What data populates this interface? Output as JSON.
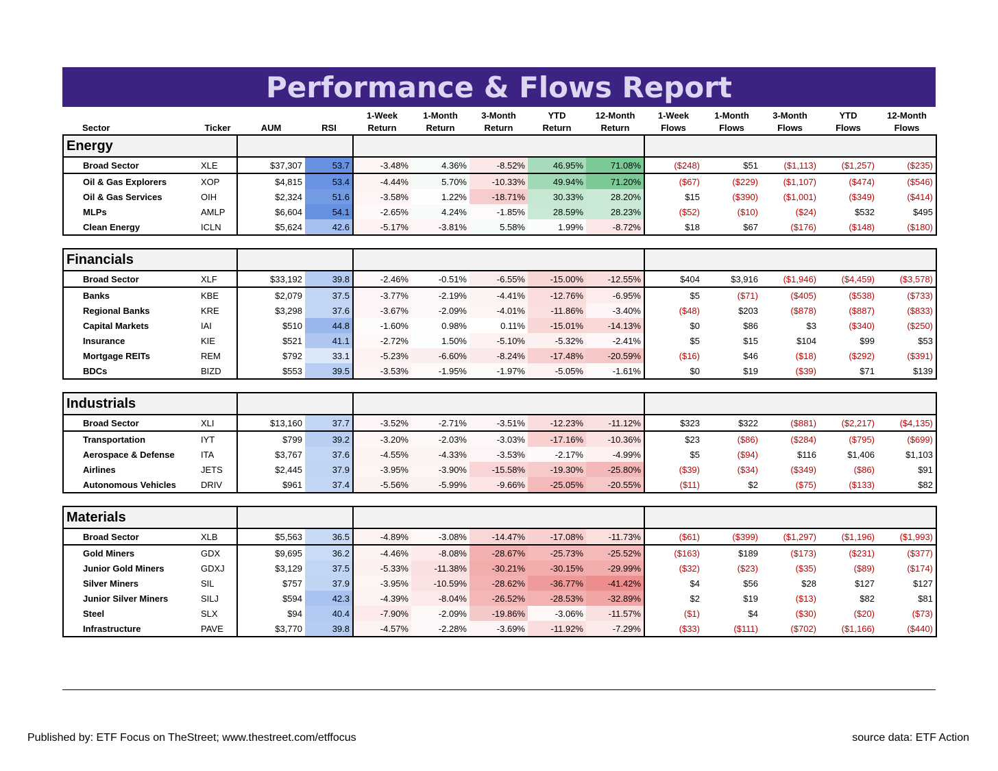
{
  "title": "Performance & Flows Report",
  "headers": {
    "sector": "Sector",
    "ticker": "Ticker",
    "aum": "AUM",
    "rsi": "RSI",
    "ret": [
      [
        "1-Week",
        "Return"
      ],
      [
        "1-Month",
        "Return"
      ],
      [
        "3-Month",
        "Return"
      ],
      [
        "YTD",
        "Return"
      ],
      [
        "12-Month",
        "Return"
      ]
    ],
    "flows": [
      [
        "1-Week",
        "Flows"
      ],
      [
        "1-Month",
        "Flows"
      ],
      [
        "3-Month",
        "Flows"
      ],
      [
        "YTD",
        "Flows"
      ],
      [
        "12-Month",
        "Flows"
      ]
    ]
  },
  "sections": [
    {
      "name": "Energy",
      "rows": [
        {
          "name": "Broad Sector",
          "ticker": "XLE",
          "aum": "$37,307",
          "rsi": "53.7",
          "ret": [
            "-3.48%",
            "4.36%",
            "-8.52%",
            "46.95%",
            "71.08%"
          ],
          "flows": [
            "($248)",
            "$51",
            "($1,113)",
            "($1,257)",
            "($235)"
          ]
        },
        {
          "name": "Oil & Gas Explorers",
          "ticker": "XOP",
          "aum": "$4,815",
          "rsi": "53.4",
          "ret": [
            "-4.44%",
            "5.70%",
            "-10.33%",
            "49.94%",
            "71.20%"
          ],
          "flows": [
            "($67)",
            "($229)",
            "($1,107)",
            "($474)",
            "($546)"
          ]
        },
        {
          "name": "Oil & Gas Services",
          "ticker": "OIH",
          "aum": "$2,324",
          "rsi": "51.6",
          "ret": [
            "-3.58%",
            "1.22%",
            "-18.71%",
            "30.33%",
            "28.20%"
          ],
          "flows": [
            "$15",
            "($390)",
            "($1,001)",
            "($349)",
            "($414)"
          ]
        },
        {
          "name": "MLPs",
          "ticker": "AMLP",
          "aum": "$6,604",
          "rsi": "54.1",
          "ret": [
            "-2.65%",
            "4.24%",
            "-1.85%",
            "28.59%",
            "28.23%"
          ],
          "flows": [
            "($52)",
            "($10)",
            "($24)",
            "$532",
            "$495"
          ]
        },
        {
          "name": "Clean Energy",
          "ticker": "ICLN",
          "aum": "$5,624",
          "rsi": "42.6",
          "ret": [
            "-5.17%",
            "-3.81%",
            "5.58%",
            "1.99%",
            "-8.72%"
          ],
          "flows": [
            "$18",
            "$67",
            "($176)",
            "($148)",
            "($180)"
          ]
        }
      ]
    },
    {
      "name": "Financials",
      "rows": [
        {
          "name": "Broad Sector",
          "ticker": "XLF",
          "aum": "$33,192",
          "rsi": "39.8",
          "ret": [
            "-2.46%",
            "-0.51%",
            "-6.55%",
            "-15.00%",
            "-12.55%"
          ],
          "flows": [
            "$404",
            "$3,916",
            "($1,946)",
            "($4,459)",
            "($3,578)"
          ]
        },
        {
          "name": "Banks",
          "ticker": "KBE",
          "aum": "$2,079",
          "rsi": "37.5",
          "ret": [
            "-3.77%",
            "-2.19%",
            "-4.41%",
            "-12.76%",
            "-6.95%"
          ],
          "flows": [
            "$5",
            "($71)",
            "($405)",
            "($538)",
            "($733)"
          ]
        },
        {
          "name": "Regional Banks",
          "ticker": "KRE",
          "aum": "$3,298",
          "rsi": "37.6",
          "ret": [
            "-3.67%",
            "-2.09%",
            "-4.01%",
            "-11.86%",
            "-3.40%"
          ],
          "flows": [
            "($48)",
            "$203",
            "($878)",
            "($887)",
            "($833)"
          ]
        },
        {
          "name": "Capital Markets",
          "ticker": "IAI",
          "aum": "$510",
          "rsi": "44.8",
          "ret": [
            "-1.60%",
            "0.98%",
            "0.11%",
            "-15.01%",
            "-14.13%"
          ],
          "flows": [
            "$0",
            "$86",
            "$3",
            "($340)",
            "($250)"
          ]
        },
        {
          "name": "Insurance",
          "ticker": "KIE",
          "aum": "$521",
          "rsi": "41.1",
          "ret": [
            "-2.72%",
            "1.50%",
            "-5.10%",
            "-5.32%",
            "-2.41%"
          ],
          "flows": [
            "$5",
            "$15",
            "$104",
            "$99",
            "$53"
          ]
        },
        {
          "name": "Mortgage REITs",
          "ticker": "REM",
          "aum": "$792",
          "rsi": "33.1",
          "ret": [
            "-5.23%",
            "-6.60%",
            "-8.24%",
            "-17.48%",
            "-20.59%"
          ],
          "flows": [
            "($16)",
            "$46",
            "($18)",
            "($292)",
            "($391)"
          ]
        },
        {
          "name": "BDCs",
          "ticker": "BIZD",
          "aum": "$553",
          "rsi": "39.5",
          "ret": [
            "-3.53%",
            "-1.95%",
            "-1.97%",
            "-5.05%",
            "-1.61%"
          ],
          "flows": [
            "$0",
            "$19",
            "($39)",
            "$71",
            "$139"
          ]
        }
      ]
    },
    {
      "name": "Industrials",
      "rows": [
        {
          "name": "Broad Sector",
          "ticker": "XLI",
          "aum": "$13,160",
          "rsi": "37.7",
          "ret": [
            "-3.52%",
            "-2.71%",
            "-3.51%",
            "-12.23%",
            "-11.12%"
          ],
          "flows": [
            "$323",
            "$322",
            "($881)",
            "($2,217)",
            "($4,135)"
          ]
        },
        {
          "name": "Transportation",
          "ticker": "IYT",
          "aum": "$799",
          "rsi": "39.2",
          "ret": [
            "-3.20%",
            "-2.03%",
            "-3.03%",
            "-17.16%",
            "-10.36%"
          ],
          "flows": [
            "$23",
            "($86)",
            "($284)",
            "($795)",
            "($699)"
          ]
        },
        {
          "name": "Aerospace & Defense",
          "ticker": "ITA",
          "aum": "$3,767",
          "rsi": "37.6",
          "ret": [
            "-4.55%",
            "-4.33%",
            "-3.53%",
            "-2.17%",
            "-4.99%"
          ],
          "flows": [
            "$5",
            "($94)",
            "$116",
            "$1,406",
            "$1,103"
          ]
        },
        {
          "name": "Airlines",
          "ticker": "JETS",
          "aum": "$2,445",
          "rsi": "37.9",
          "ret": [
            "-3.95%",
            "-3.90%",
            "-15.58%",
            "-19.30%",
            "-25.80%"
          ],
          "flows": [
            "($39)",
            "($34)",
            "($349)",
            "($86)",
            "$91"
          ]
        },
        {
          "name": "Autonomous Vehicles",
          "ticker": "DRIV",
          "aum": "$961",
          "rsi": "37.4",
          "ret": [
            "-5.56%",
            "-5.99%",
            "-9.66%",
            "-25.05%",
            "-20.55%"
          ],
          "flows": [
            "($11)",
            "$2",
            "($75)",
            "($133)",
            "$82"
          ]
        }
      ]
    },
    {
      "name": "Materials",
      "rows": [
        {
          "name": "Broad Sector",
          "ticker": "XLB",
          "aum": "$5,563",
          "rsi": "36.5",
          "ret": [
            "-4.89%",
            "-3.08%",
            "-14.47%",
            "-17.08%",
            "-11.73%"
          ],
          "flows": [
            "($61)",
            "($399)",
            "($1,297)",
            "($1,196)",
            "($1,993)"
          ]
        },
        {
          "name": "Gold Miners",
          "ticker": "GDX",
          "aum": "$9,695",
          "rsi": "36.2",
          "ret": [
            "-4.46%",
            "-8.08%",
            "-28.67%",
            "-25.73%",
            "-25.52%"
          ],
          "flows": [
            "($163)",
            "$189",
            "($173)",
            "($231)",
            "($377)"
          ]
        },
        {
          "name": "Junior Gold Miners",
          "ticker": "GDXJ",
          "aum": "$3,129",
          "rsi": "37.5",
          "ret": [
            "-5.33%",
            "-11.38%",
            "-30.21%",
            "-30.15%",
            "-29.99%"
          ],
          "flows": [
            "($32)",
            "($23)",
            "($35)",
            "($89)",
            "($174)"
          ]
        },
        {
          "name": "Silver Miners",
          "ticker": "SIL",
          "aum": "$757",
          "rsi": "37.9",
          "ret": [
            "-3.95%",
            "-10.59%",
            "-28.62%",
            "-36.77%",
            "-41.42%"
          ],
          "flows": [
            "$4",
            "$56",
            "$28",
            "$127",
            "$127"
          ]
        },
        {
          "name": "Junior Silver Miners",
          "ticker": "SILJ",
          "aum": "$594",
          "rsi": "42.3",
          "ret": [
            "-4.39%",
            "-8.04%",
            "-26.52%",
            "-28.53%",
            "-32.89%"
          ],
          "flows": [
            "$2",
            "$19",
            "($13)",
            "$82",
            "$81"
          ]
        },
        {
          "name": "Steel",
          "ticker": "SLX",
          "aum": "$94",
          "rsi": "40.4",
          "ret": [
            "-7.90%",
            "-2.09%",
            "-19.86%",
            "-3.06%",
            "-11.57%"
          ],
          "flows": [
            "($1)",
            "$4",
            "($30)",
            "($20)",
            "($73)"
          ]
        },
        {
          "name": "Infrastructure",
          "ticker": "PAVE",
          "aum": "$3,770",
          "rsi": "39.8",
          "ret": [
            "-4.57%",
            "-2.28%",
            "-3.69%",
            "-11.92%",
            "-7.29%"
          ],
          "flows": [
            "($33)",
            "($111)",
            "($702)",
            "($1,166)",
            "($440)"
          ]
        }
      ]
    }
  ],
  "footer": {
    "published": "Published by: ETF Focus on TheStreet; www.thestreet.com/etffocus",
    "source": "source data: ETF Action"
  }
}
